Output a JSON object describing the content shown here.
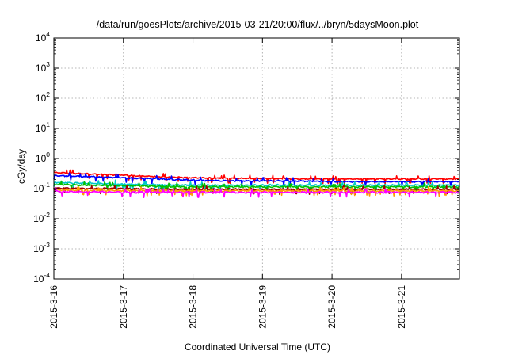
{
  "chart_data": {
    "type": "line",
    "title": "/data/run/goesPlots/archive/2015-03-21/20:00/flux/../bryn/5daysMoon.plot",
    "xlabel": "Coordinated Universal Time (UTC)",
    "ylabel": "cGy/day",
    "y_scale": "log",
    "ylim": [
      0.0001,
      10000
    ],
    "xlim": [
      "2015-03-16 00:00",
      "2015-03-21 20:00"
    ],
    "grid": true,
    "legend": "none",
    "x_ticks": [
      "2015-3-16",
      "2015-3-17",
      "2015-3-18",
      "2015-3-19",
      "2015-3-20",
      "2015-3-21"
    ],
    "y_ticks": [
      {
        "base": "10",
        "exp": "-4",
        "value": 0.0001
      },
      {
        "base": "10",
        "exp": "-3",
        "value": 0.001
      },
      {
        "base": "10",
        "exp": "-2",
        "value": 0.01
      },
      {
        "base": "10",
        "exp": "-1",
        "value": 0.1
      },
      {
        "base": "10",
        "exp": "0",
        "value": 1
      },
      {
        "base": "10",
        "exp": "1",
        "value": 10
      },
      {
        "base": "10",
        "exp": "2",
        "value": 100
      },
      {
        "base": "10",
        "exp": "3",
        "value": 1000
      },
      {
        "base": "10",
        "exp": "4",
        "value": 10000
      }
    ],
    "series": [
      {
        "color": "#ff0000",
        "x": [
          "2015-03-16 00:00",
          "2015-03-16 12:00",
          "2015-03-17 00:00",
          "2015-03-17 12:00",
          "2015-03-18 00:00",
          "2015-03-18 12:00",
          "2015-03-19 00:00",
          "2015-03-19 12:00",
          "2015-03-20 00:00",
          "2015-03-20 12:00",
          "2015-03-21 00:00",
          "2015-03-21 12:00",
          "2015-03-21 20:00"
        ],
        "values": [
          0.34,
          0.31,
          0.28,
          0.25,
          0.23,
          0.22,
          0.22,
          0.21,
          0.21,
          0.21,
          0.21,
          0.21,
          0.21
        ]
      },
      {
        "color": "#0000ff",
        "x": [
          "2015-03-16 00:00",
          "2015-03-16 12:00",
          "2015-03-17 00:00",
          "2015-03-17 12:00",
          "2015-03-18 00:00",
          "2015-03-18 12:00",
          "2015-03-19 00:00",
          "2015-03-19 12:00",
          "2015-03-20 00:00",
          "2015-03-20 12:00",
          "2015-03-21 00:00",
          "2015-03-21 12:00",
          "2015-03-21 20:00"
        ],
        "values": [
          0.27,
          0.25,
          0.23,
          0.21,
          0.19,
          0.18,
          0.18,
          0.18,
          0.17,
          0.17,
          0.17,
          0.17,
          0.17
        ]
      },
      {
        "color": "#00c8c8",
        "x": [
          "2015-03-16 00:00",
          "2015-03-16 12:00",
          "2015-03-17 00:00",
          "2015-03-17 12:00",
          "2015-03-18 00:00",
          "2015-03-18 12:00",
          "2015-03-19 00:00",
          "2015-03-19 12:00",
          "2015-03-20 00:00",
          "2015-03-20 12:00",
          "2015-03-21 00:00",
          "2015-03-21 12:00",
          "2015-03-21 20:00"
        ],
        "values": [
          0.16,
          0.15,
          0.14,
          0.135,
          0.13,
          0.13,
          0.13,
          0.13,
          0.13,
          0.13,
          0.13,
          0.13,
          0.13
        ]
      },
      {
        "color": "#00c000",
        "x": [
          "2015-03-16 00:00",
          "2015-03-16 12:00",
          "2015-03-17 00:00",
          "2015-03-17 12:00",
          "2015-03-18 00:00",
          "2015-03-18 12:00",
          "2015-03-19 00:00",
          "2015-03-19 12:00",
          "2015-03-20 00:00",
          "2015-03-20 12:00",
          "2015-03-21 00:00",
          "2015-03-21 12:00",
          "2015-03-21 20:00"
        ],
        "values": [
          0.14,
          0.13,
          0.125,
          0.12,
          0.115,
          0.115,
          0.115,
          0.115,
          0.115,
          0.115,
          0.115,
          0.115,
          0.115
        ]
      },
      {
        "color": "#a00000",
        "x": [
          "2015-03-16 00:00",
          "2015-03-16 12:00",
          "2015-03-17 00:00",
          "2015-03-17 12:00",
          "2015-03-18 00:00",
          "2015-03-18 12:00",
          "2015-03-19 00:00",
          "2015-03-19 12:00",
          "2015-03-20 00:00",
          "2015-03-20 12:00",
          "2015-03-21 00:00",
          "2015-03-21 12:00",
          "2015-03-21 20:00"
        ],
        "values": [
          0.105,
          0.1,
          0.1,
          0.095,
          0.095,
          0.095,
          0.095,
          0.095,
          0.095,
          0.095,
          0.095,
          0.095,
          0.095
        ]
      },
      {
        "color": "#ff9a00",
        "x": [
          "2015-03-16 00:00",
          "2015-03-16 12:00",
          "2015-03-17 00:00",
          "2015-03-17 12:00",
          "2015-03-18 00:00",
          "2015-03-18 12:00",
          "2015-03-19 00:00",
          "2015-03-19 12:00",
          "2015-03-20 00:00",
          "2015-03-20 12:00",
          "2015-03-21 00:00",
          "2015-03-21 12:00",
          "2015-03-21 20:00"
        ],
        "values": [
          0.09,
          0.088,
          0.086,
          0.085,
          0.085,
          0.085,
          0.085,
          0.085,
          0.085,
          0.085,
          0.085,
          0.085,
          0.085
        ]
      },
      {
        "color": "#ff00ff",
        "x": [
          "2015-03-16 00:00",
          "2015-03-16 12:00",
          "2015-03-17 00:00",
          "2015-03-17 12:00",
          "2015-03-18 00:00",
          "2015-03-18 12:00",
          "2015-03-19 00:00",
          "2015-03-19 12:00",
          "2015-03-20 00:00",
          "2015-03-20 12:00",
          "2015-03-21 00:00",
          "2015-03-21 12:00",
          "2015-03-21 20:00"
        ],
        "values": [
          0.08,
          0.078,
          0.076,
          0.075,
          0.075,
          0.075,
          0.075,
          0.075,
          0.075,
          0.075,
          0.075,
          0.075,
          0.075
        ]
      }
    ]
  }
}
